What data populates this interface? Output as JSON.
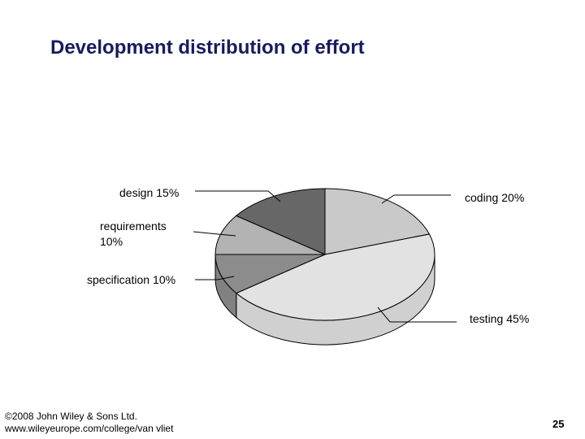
{
  "chart_data": {
    "type": "pie",
    "title": "Development distribution of effort",
    "categories": [
      "coding",
      "testing",
      "specification",
      "requirements",
      "design"
    ],
    "values": [
      20,
      45,
      10,
      10,
      15
    ],
    "value_labels": [
      "20%",
      "45%",
      "10%",
      "10%",
      "15%"
    ],
    "colors": [
      "#c9c9c9",
      "#e2e2e2",
      "#8c8c8c",
      "#b3b3b3",
      "#676767"
    ]
  },
  "footer": {
    "copyright": "©2008 John Wiley & Sons Ltd.",
    "url": "www.wileyeurope.com/college/van vliet"
  },
  "page_number": "25"
}
